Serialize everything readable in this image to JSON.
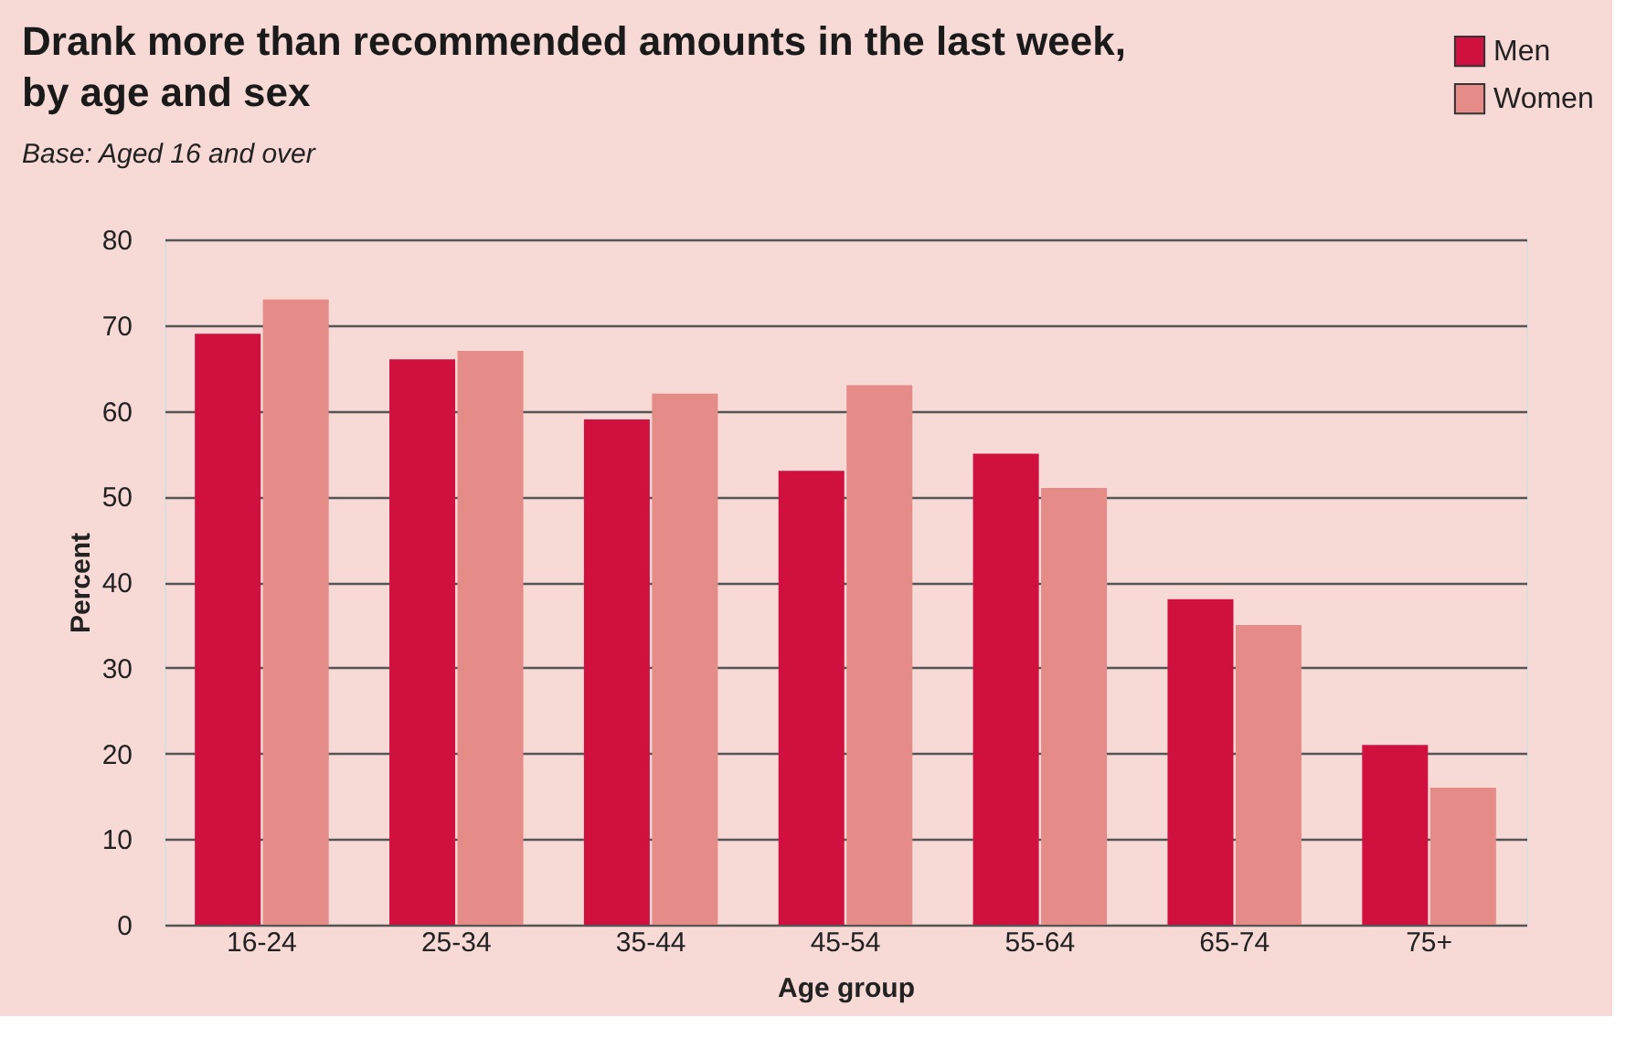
{
  "chart_data": {
    "type": "bar",
    "title": [
      "Drank more than recommended amounts in the last week,",
      "by age and sex"
    ],
    "subtitle": "Base: Aged 16 and over",
    "xlabel": "Age group",
    "ylabel": "Percent",
    "categories": [
      "16-24",
      "25-34",
      "35-44",
      "45-54",
      "55-64",
      "65-74",
      "75+"
    ],
    "series": [
      {
        "name": "Men",
        "color": "#d0103f",
        "values": [
          69,
          66,
          59,
          53,
          55,
          38,
          21
        ]
      },
      {
        "name": "Women",
        "color": "#e58c89",
        "values": [
          73,
          67,
          62,
          63,
          51,
          35,
          16
        ]
      }
    ],
    "ylim": [
      0,
      80
    ],
    "yticks": [
      0,
      10,
      20,
      30,
      40,
      50,
      60,
      70,
      80
    ],
    "grid": "y",
    "legend": "top right"
  }
}
